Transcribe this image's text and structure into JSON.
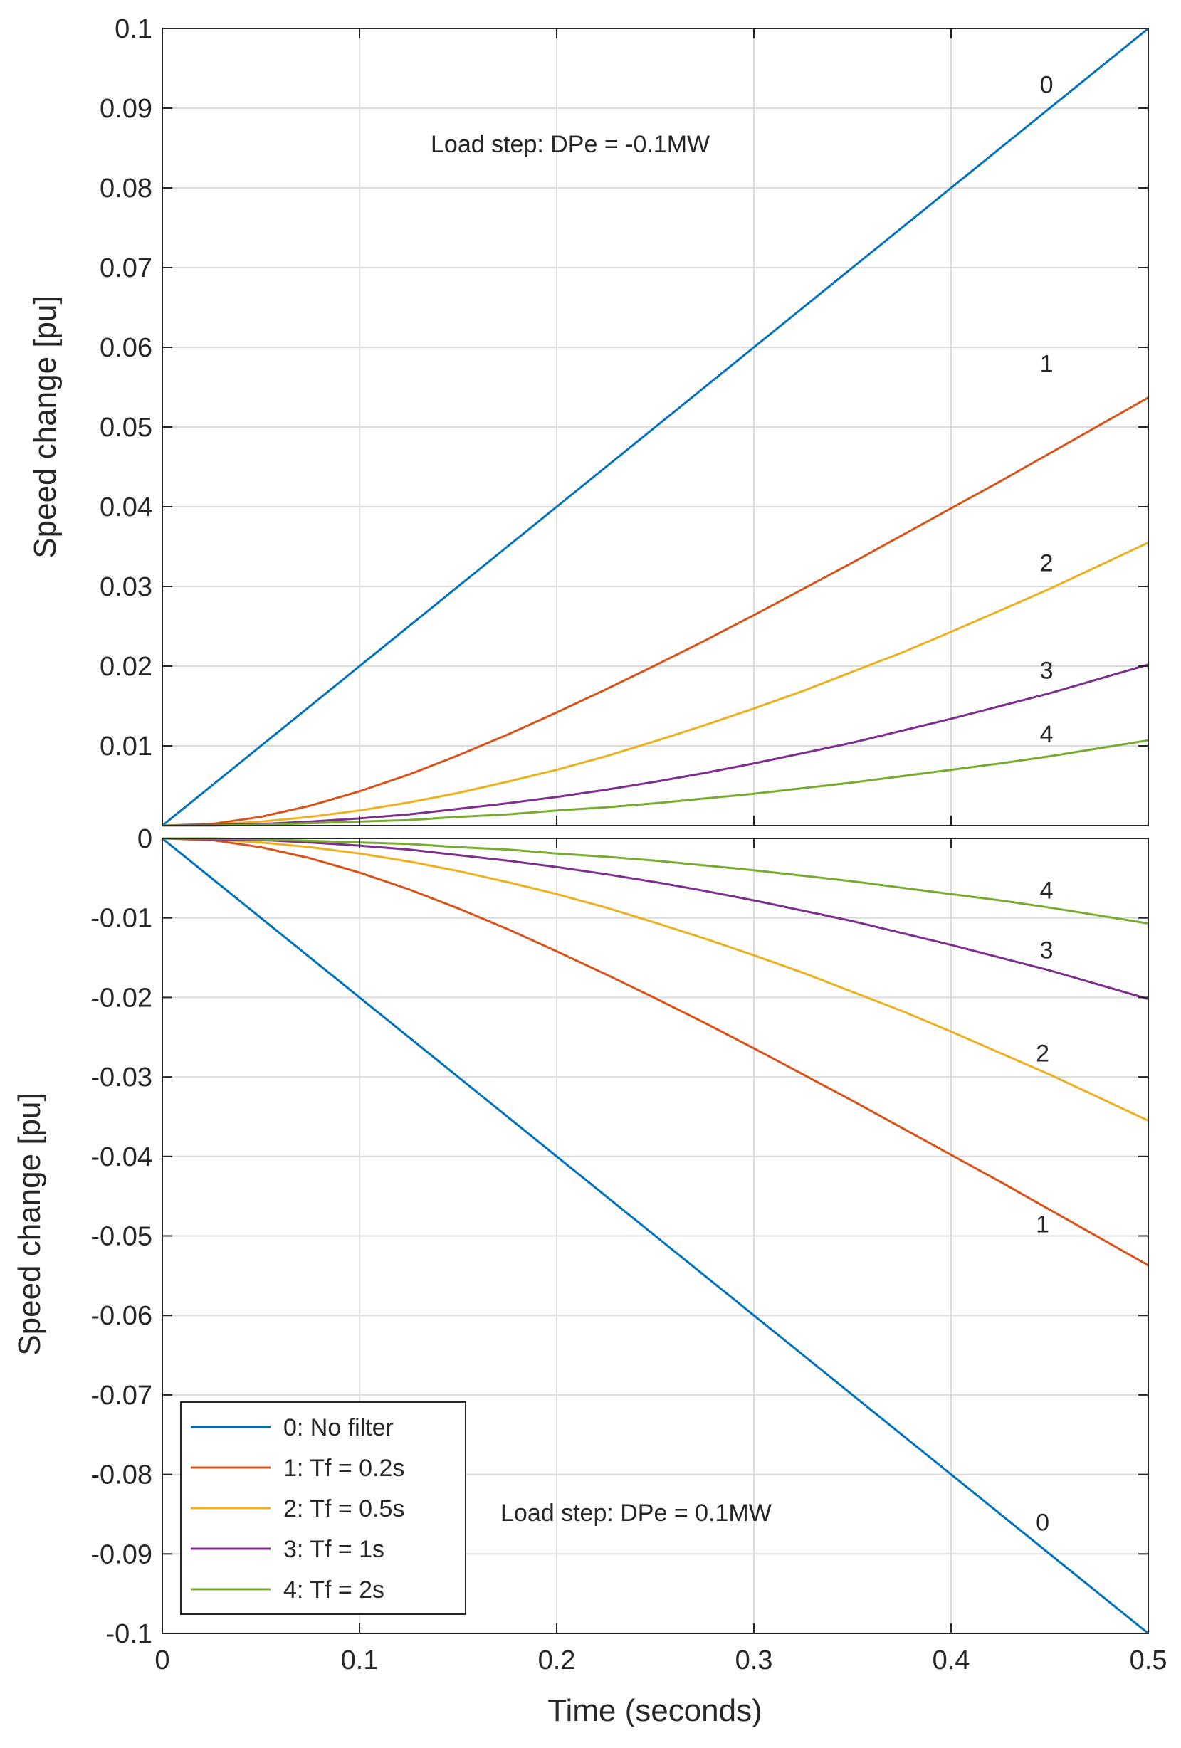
{
  "chart_data": [
    {
      "type": "line",
      "panel": "top",
      "title": "",
      "xlabel": "",
      "ylabel": "Speed change [pu]",
      "xlim": [
        0,
        0.5
      ],
      "ylim": [
        0,
        0.1
      ],
      "grid": true,
      "xticks": [
        0,
        0.1,
        0.2,
        0.3,
        0.4,
        0.5
      ],
      "yticks": [
        0.01,
        0.02,
        0.03,
        0.04,
        0.05,
        0.06,
        0.07,
        0.08,
        0.09,
        0.1
      ],
      "ytick_labels": [
        "0.01",
        "0.02",
        "0.03",
        "0.04",
        "0.05",
        "0.06",
        "0.07",
        "0.08",
        "0.09",
        "0.1"
      ],
      "annotation": "Load step: DPe = -0.1MW",
      "x": [
        0,
        0.025,
        0.05,
        0.075,
        0.1,
        0.125,
        0.15,
        0.175,
        0.2,
        0.225,
        0.25,
        0.275,
        0.3,
        0.325,
        0.35,
        0.375,
        0.4,
        0.425,
        0.45,
        0.475,
        0.5
      ],
      "series": [
        {
          "name": "0: No filter",
          "label": "0",
          "color": "#0072BD",
          "values": [
            0,
            0.005,
            0.01,
            0.015,
            0.02,
            0.025,
            0.03,
            0.035,
            0.04,
            0.045,
            0.05,
            0.055,
            0.06,
            0.065,
            0.07,
            0.075,
            0.08,
            0.085,
            0.09,
            0.095,
            0.1
          ]
        },
        {
          "name": "1: Tf = 0.2s",
          "label": "1",
          "color": "#D95319",
          "values": [
            0,
            0.0002,
            0.0011,
            0.0025,
            0.0043,
            0.0064,
            0.0088,
            0.0114,
            0.0142,
            0.0171,
            0.0201,
            0.0232,
            0.0264,
            0.0297,
            0.033,
            0.0364,
            0.0398,
            0.0432,
            0.0467,
            0.0502,
            0.0537
          ]
        },
        {
          "name": "2: Tf = 0.5s",
          "label": "2",
          "color": "#EDB120",
          "values": [
            0,
            0.0001,
            0.0005,
            0.0011,
            0.0019,
            0.0029,
            0.0041,
            0.0055,
            0.007,
            0.0087,
            0.0106,
            0.0126,
            0.0147,
            0.0169,
            0.0193,
            0.0217,
            0.0243,
            0.027,
            0.0297,
            0.0326,
            0.0355
          ]
        },
        {
          "name": "3: Tf = 1s",
          "label": "3",
          "color": "#7E2F8E",
          "values": [
            0,
            0.0001,
            0.0002,
            0.0005,
            0.0009,
            0.0014,
            0.0021,
            0.0028,
            0.0036,
            0.0045,
            0.0055,
            0.0066,
            0.0078,
            0.0091,
            0.0104,
            0.0119,
            0.0134,
            0.015,
            0.0166,
            0.0184,
            0.0202
          ]
        },
        {
          "name": "4: Tf = 2s",
          "label": "4",
          "color": "#77AC30",
          "values": [
            0,
            0,
            0.0001,
            0.0003,
            0.0005,
            0.0007,
            0.0011,
            0.0014,
            0.0019,
            0.0023,
            0.0028,
            0.0034,
            0.004,
            0.0047,
            0.0054,
            0.0062,
            0.007,
            0.0078,
            0.0087,
            0.0097,
            0.0107
          ]
        }
      ],
      "curve_labels": [
        {
          "text": "0",
          "x": 0.445,
          "y": 0.093
        },
        {
          "text": "1",
          "x": 0.445,
          "y": 0.058
        },
        {
          "text": "2",
          "x": 0.445,
          "y": 0.033
        },
        {
          "text": "3",
          "x": 0.445,
          "y": 0.0195
        },
        {
          "text": "4",
          "x": 0.445,
          "y": 0.0115
        }
      ]
    },
    {
      "type": "line",
      "panel": "bottom",
      "title": "",
      "xlabel": "Time (seconds)",
      "ylabel": "Speed change [pu]",
      "xlim": [
        0,
        0.5
      ],
      "ylim": [
        -0.1,
        0
      ],
      "grid": true,
      "xticks": [
        0,
        0.1,
        0.2,
        0.3,
        0.4,
        0.5
      ],
      "xtick_labels": [
        "0",
        "0.1",
        "0.2",
        "0.3",
        "0.4",
        "0.5"
      ],
      "yticks": [
        0,
        -0.01,
        -0.02,
        -0.03,
        -0.04,
        -0.05,
        -0.06,
        -0.07,
        -0.08,
        -0.09,
        -0.1
      ],
      "ytick_labels": [
        "0",
        "-0.01",
        "-0.02",
        "-0.03",
        "-0.04",
        "-0.05",
        "-0.06",
        "-0.07",
        "-0.08",
        "-0.09",
        "-0.1"
      ],
      "annotation": "Load step: DPe = 0.1MW",
      "legend_location": "bottom-left",
      "x": [
        0,
        0.025,
        0.05,
        0.075,
        0.1,
        0.125,
        0.15,
        0.175,
        0.2,
        0.225,
        0.25,
        0.275,
        0.3,
        0.325,
        0.35,
        0.375,
        0.4,
        0.425,
        0.45,
        0.475,
        0.5
      ],
      "series": [
        {
          "name": "0: No filter",
          "label": "0",
          "color": "#0072BD",
          "values": [
            0,
            -0.005,
            -0.01,
            -0.015,
            -0.02,
            -0.025,
            -0.03,
            -0.035,
            -0.04,
            -0.045,
            -0.05,
            -0.055,
            -0.06,
            -0.065,
            -0.07,
            -0.075,
            -0.08,
            -0.085,
            -0.09,
            -0.095,
            -0.1
          ]
        },
        {
          "name": "1: Tf = 0.2s",
          "label": "1",
          "color": "#D95319",
          "values": [
            0,
            -0.0002,
            -0.0011,
            -0.0025,
            -0.0043,
            -0.0064,
            -0.0088,
            -0.0114,
            -0.0142,
            -0.0171,
            -0.0201,
            -0.0232,
            -0.0264,
            -0.0297,
            -0.033,
            -0.0364,
            -0.0398,
            -0.0432,
            -0.0467,
            -0.0502,
            -0.0537
          ]
        },
        {
          "name": "2: Tf = 0.5s",
          "label": "2",
          "color": "#EDB120",
          "values": [
            0,
            -0.0001,
            -0.0005,
            -0.0011,
            -0.0019,
            -0.0029,
            -0.0041,
            -0.0055,
            -0.007,
            -0.0087,
            -0.0106,
            -0.0126,
            -0.0147,
            -0.0169,
            -0.0193,
            -0.0217,
            -0.0243,
            -0.027,
            -0.0297,
            -0.0326,
            -0.0355
          ]
        },
        {
          "name": "3: Tf = 1s",
          "label": "3",
          "color": "#7E2F8E",
          "values": [
            0,
            -0.0001,
            -0.0002,
            -0.0005,
            -0.0009,
            -0.0014,
            -0.0021,
            -0.0028,
            -0.0036,
            -0.0045,
            -0.0055,
            -0.0066,
            -0.0078,
            -0.0091,
            -0.0104,
            -0.0119,
            -0.0134,
            -0.015,
            -0.0166,
            -0.0184,
            -0.0202
          ]
        },
        {
          "name": "4: Tf = 2s",
          "label": "4",
          "color": "#77AC30",
          "values": [
            0,
            0,
            -0.0001,
            -0.0003,
            -0.0005,
            -0.0007,
            -0.0011,
            -0.0014,
            -0.0019,
            -0.0023,
            -0.0028,
            -0.0034,
            -0.004,
            -0.0047,
            -0.0054,
            -0.0062,
            -0.007,
            -0.0078,
            -0.0087,
            -0.0097,
            -0.0107
          ]
        }
      ],
      "curve_labels": [
        {
          "text": "4",
          "x": 0.445,
          "y": -0.0065
        },
        {
          "text": "3",
          "x": 0.445,
          "y": -0.014
        },
        {
          "text": "2",
          "x": 0.443,
          "y": -0.027
        },
        {
          "text": "1",
          "x": 0.443,
          "y": -0.0485
        },
        {
          "text": "0",
          "x": 0.443,
          "y": -0.086
        }
      ]
    }
  ]
}
